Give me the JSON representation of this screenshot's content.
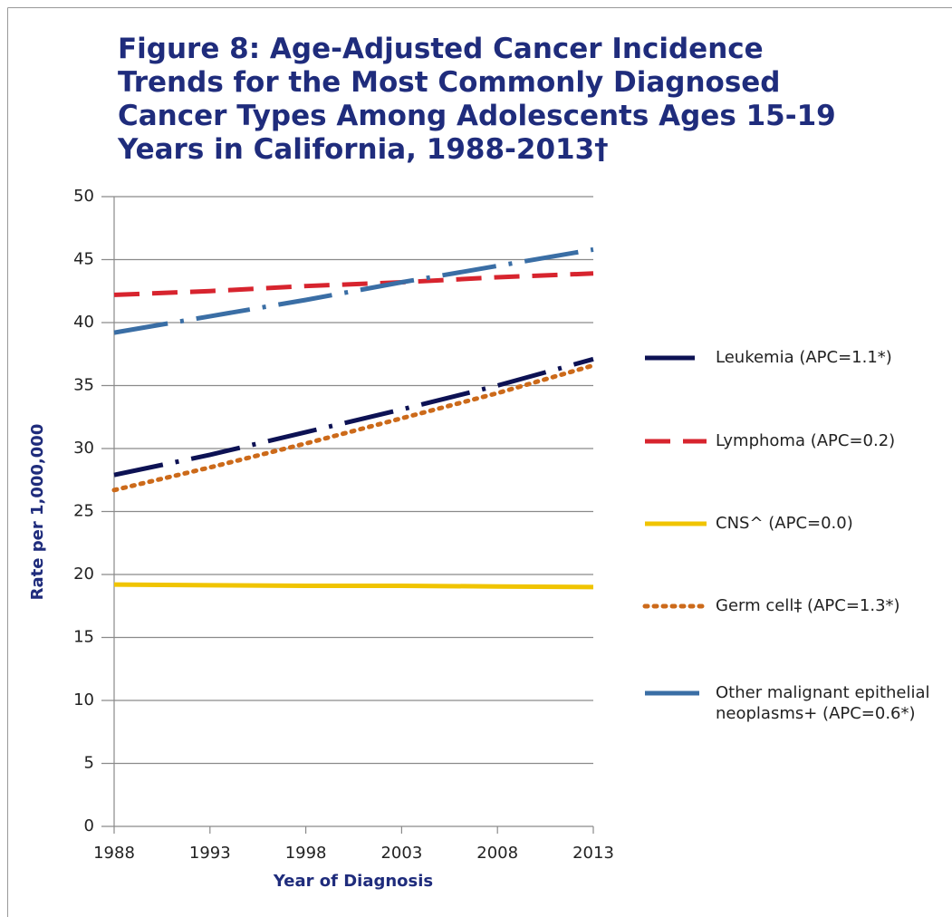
{
  "chart_data": {
    "type": "line",
    "title": "Figure 8: Age-Adjusted Cancer Incidence Trends for the Most Commonly Diagnosed Cancer Types Among Adolescents Ages 15-19 Years in California, 1988-2013†",
    "x_label": "Year of Diagnosis",
    "y_label": "Rate per 1,000,000",
    "x": [
      1988,
      1993,
      1998,
      2003,
      2008,
      2013
    ],
    "series": [
      {
        "name": "Leukemia (APC=1.1*)",
        "color": "#0d1254",
        "values": [
          27.9,
          29.5,
          31.3,
          33.1,
          35.0,
          37.1
        ]
      },
      {
        "name": "Lymphoma (APC=0.2)",
        "color": "#d7242e",
        "values": [
          42.2,
          42.5,
          42.9,
          43.2,
          43.6,
          43.9
        ]
      },
      {
        "name": "CNS^ (APC=0.0)",
        "color": "#f0c400",
        "values": [
          19.2,
          19.15,
          19.1,
          19.1,
          19.05,
          19.0
        ]
      },
      {
        "name": "Germ cell‡ (APC=1.3*)",
        "color": "#cc6a1a",
        "values": [
          26.7,
          28.5,
          30.4,
          32.4,
          34.4,
          36.6
        ]
      },
      {
        "name": "Other malignant epithelial neoplasms+ (APC=0.6*)",
        "color": "#3a6ea5",
        "values": [
          39.2,
          40.5,
          41.8,
          43.2,
          44.5,
          45.8
        ]
      }
    ],
    "xlim": [
      1988,
      2013
    ],
    "xticks": [
      1988,
      1993,
      1998,
      2003,
      2008,
      2013
    ],
    "ylim": [
      0,
      50
    ],
    "yticks": [
      0,
      5,
      10,
      15,
      20,
      25,
      30,
      35,
      40,
      45,
      50
    ],
    "grid": true,
    "legend": "right"
  }
}
